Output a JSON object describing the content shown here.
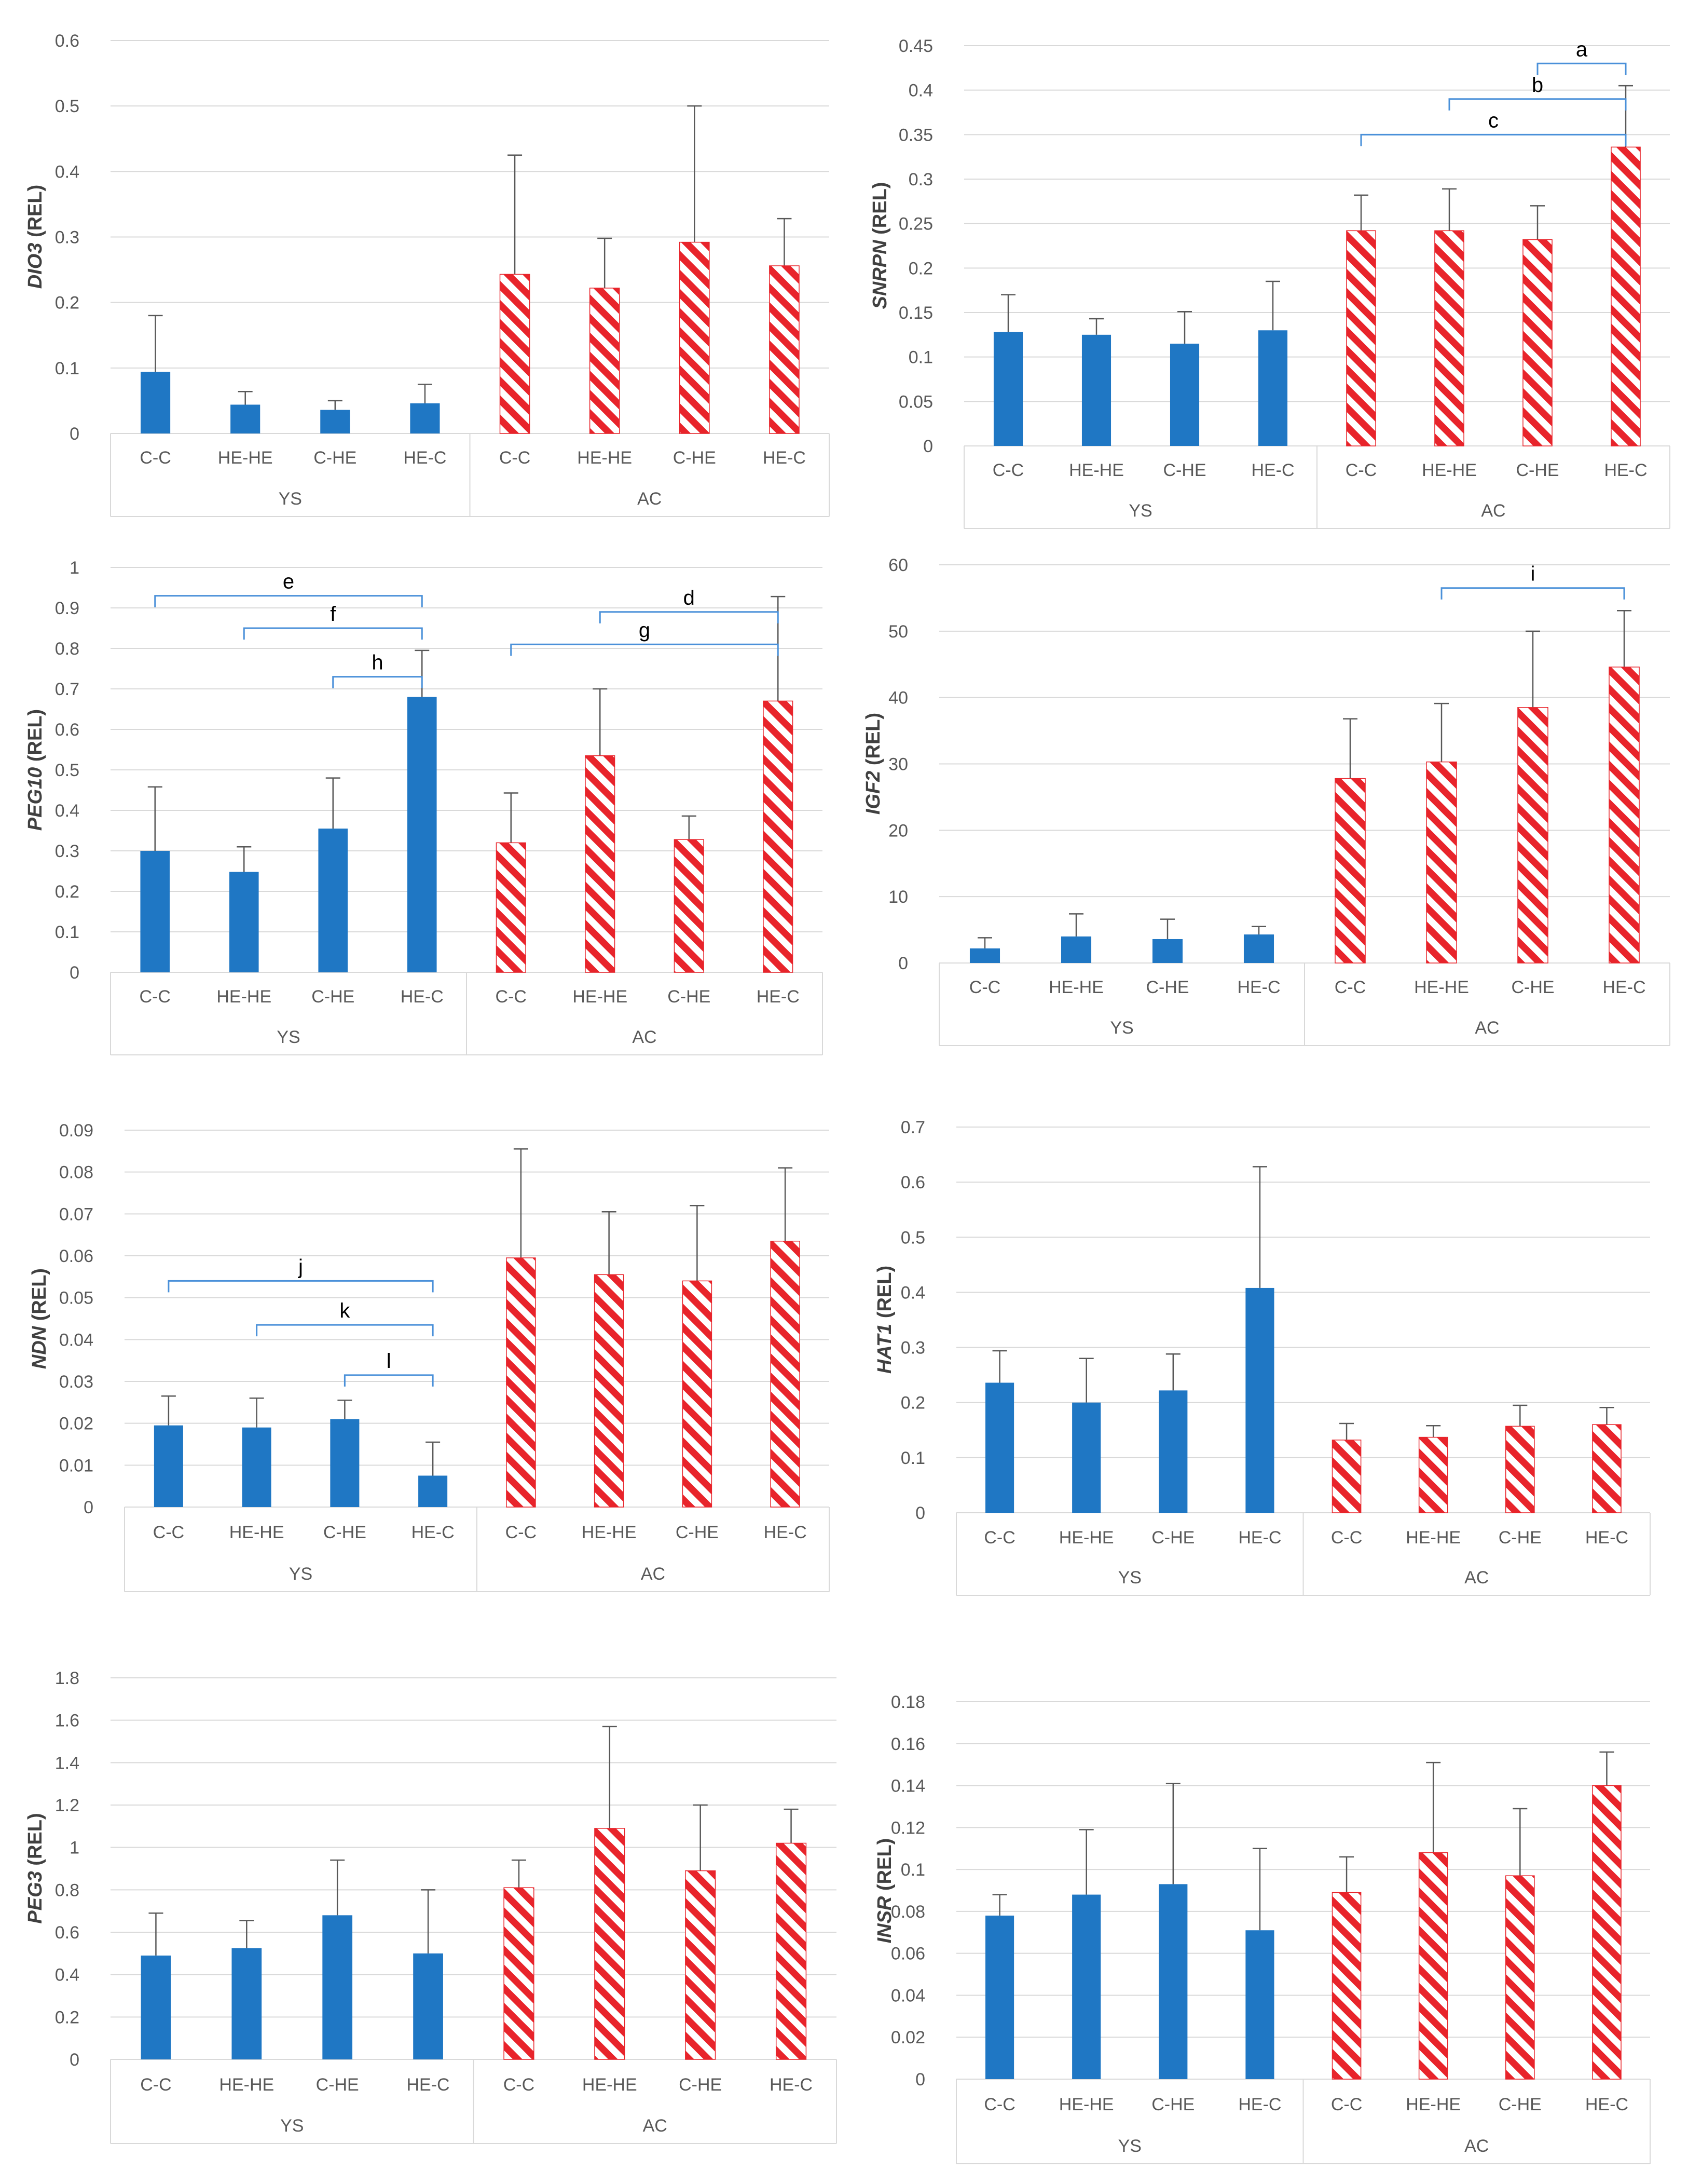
{
  "colors": {
    "ys": "#1f77c4",
    "ac": "#e8242b",
    "bracket": "#4a90d9"
  },
  "chart_data": [
    {
      "type": "bar",
      "gene": "DIO3",
      "ylabel_suffix": " (REL)",
      "ylim": [
        0,
        0.6
      ],
      "yticks": [
        "0",
        "0.1",
        "0.2",
        "0.3",
        "0.4",
        "0.5",
        "0.6"
      ],
      "groups": [
        {
          "name": "YS",
          "categories": [
            "C-C",
            "HE-HE",
            "C-HE",
            "HE-C"
          ],
          "values": [
            0.094,
            0.044,
            0.036,
            0.046
          ],
          "errors": [
            0.086,
            0.02,
            0.014,
            0.029
          ]
        },
        {
          "name": "AC",
          "categories": [
            "C-C",
            "HE-HE",
            "C-HE",
            "HE-C"
          ],
          "values": [
            0.243,
            0.222,
            0.292,
            0.256
          ],
          "errors": [
            0.182,
            0.076,
            0.208,
            0.072
          ]
        }
      ],
      "brackets": []
    },
    {
      "type": "bar",
      "gene": "SNRPN",
      "ylabel_suffix": " (REL)",
      "ylim": [
        0,
        0.45
      ],
      "yticks": [
        "0",
        "0.05",
        "0.1",
        "0.15",
        "0.2",
        "0.25",
        "0.3",
        "0.35",
        "0.4",
        "0.45"
      ],
      "groups": [
        {
          "name": "YS",
          "categories": [
            "C-C",
            "HE-HE",
            "C-HE",
            "HE-C"
          ],
          "values": [
            0.128,
            0.125,
            0.115,
            0.13
          ],
          "errors": [
            0.042,
            0.018,
            0.036,
            0.055
          ]
        },
        {
          "name": "AC",
          "categories": [
            "C-C",
            "HE-HE",
            "C-HE",
            "HE-C"
          ],
          "values": [
            0.242,
            0.242,
            0.232,
            0.336
          ],
          "errors": [
            0.04,
            0.047,
            0.038,
            0.069
          ]
        }
      ],
      "brackets": [
        {
          "label": "a",
          "from": 6,
          "to": 7,
          "y": 0.43
        },
        {
          "label": "b",
          "from": 5,
          "to": 7,
          "y": 0.39
        },
        {
          "label": "c",
          "from": 4,
          "to": 7,
          "y": 0.35
        }
      ]
    },
    {
      "type": "bar",
      "gene": "PEG10",
      "ylabel_suffix": " (REL)",
      "ylim": [
        0,
        1
      ],
      "yticks": [
        "0",
        "0.1",
        "0.2",
        "0.3",
        "0.4",
        "0.5",
        "0.6",
        "0.7",
        "0.8",
        "0.9",
        "1"
      ],
      "groups": [
        {
          "name": "YS",
          "categories": [
            "C-C",
            "HE-HE",
            "C-HE",
            "HE-C"
          ],
          "values": [
            0.3,
            0.248,
            0.355,
            0.68
          ],
          "errors": [
            0.158,
            0.062,
            0.125,
            0.115
          ]
        },
        {
          "name": "AC",
          "categories": [
            "C-C",
            "HE-HE",
            "C-HE",
            "HE-C"
          ],
          "values": [
            0.32,
            0.535,
            0.328,
            0.67
          ],
          "errors": [
            0.123,
            0.165,
            0.058,
            0.258
          ]
        }
      ],
      "brackets": [
        {
          "label": "e",
          "from": 0,
          "to": 3,
          "y": 0.93
        },
        {
          "label": "f",
          "from": 1,
          "to": 3,
          "y": 0.85
        },
        {
          "label": "h",
          "from": 2,
          "to": 3,
          "y": 0.73
        },
        {
          "label": "d",
          "from": 5,
          "to": 7,
          "y": 0.89
        },
        {
          "label": "g",
          "from": 4,
          "to": 7,
          "y": 0.81
        }
      ]
    },
    {
      "type": "bar",
      "gene": "IGF2",
      "ylabel_suffix": " (REL)",
      "ylim": [
        0,
        60
      ],
      "yticks": [
        "0",
        "10",
        "20",
        "30",
        "40",
        "50",
        "60"
      ],
      "groups": [
        {
          "name": "YS",
          "categories": [
            "C-C",
            "HE-HE",
            "C-HE",
            "HE-C"
          ],
          "values": [
            2.2,
            4.0,
            3.6,
            4.3
          ],
          "errors": [
            1.6,
            3.4,
            3.0,
            1.2
          ]
        },
        {
          "name": "AC",
          "categories": [
            "C-C",
            "HE-HE",
            "C-HE",
            "HE-C"
          ],
          "values": [
            27.8,
            30.3,
            38.5,
            44.6
          ],
          "errors": [
            9.0,
            8.8,
            11.5,
            8.5
          ]
        }
      ],
      "brackets": [
        {
          "label": "i",
          "from": 5,
          "to": 7,
          "y": 56.5
        }
      ]
    },
    {
      "type": "bar",
      "gene": "NDN",
      "ylabel_suffix": " (REL)",
      "ylim": [
        0,
        0.09
      ],
      "yticks": [
        "0",
        "0.01",
        "0.02",
        "0.03",
        "0.04",
        "0.05",
        "0.06",
        "0.07",
        "0.08",
        "0.09"
      ],
      "groups": [
        {
          "name": "YS",
          "categories": [
            "C-C",
            "HE-HE",
            "C-HE",
            "HE-C"
          ],
          "values": [
            0.0195,
            0.019,
            0.021,
            0.0075
          ],
          "errors": [
            0.007,
            0.007,
            0.0045,
            0.008
          ]
        },
        {
          "name": "AC",
          "categories": [
            "C-C",
            "HE-HE",
            "C-HE",
            "HE-C"
          ],
          "values": [
            0.0595,
            0.0555,
            0.054,
            0.0635
          ],
          "errors": [
            0.026,
            0.015,
            0.018,
            0.0175
          ]
        }
      ],
      "brackets": [
        {
          "label": "j",
          "from": 0,
          "to": 3,
          "y": 0.054
        },
        {
          "label": "k",
          "from": 1,
          "to": 3,
          "y": 0.0435
        },
        {
          "label": "l",
          "from": 2,
          "to": 3,
          "y": 0.0315
        }
      ]
    },
    {
      "type": "bar",
      "gene": "HAT1",
      "ylabel_suffix": " (REL)",
      "ylim": [
        0,
        0.7
      ],
      "yticks": [
        "0",
        "0.1",
        "0.2",
        "0.3",
        "0.4",
        "0.5",
        "0.6",
        "0.7"
      ],
      "groups": [
        {
          "name": "YS",
          "categories": [
            "C-C",
            "HE-HE",
            "C-HE",
            "HE-C"
          ],
          "values": [
            0.236,
            0.2,
            0.222,
            0.408
          ],
          "errors": [
            0.058,
            0.08,
            0.066,
            0.22
          ]
        },
        {
          "name": "AC",
          "categories": [
            "C-C",
            "HE-HE",
            "C-HE",
            "HE-C"
          ],
          "values": [
            0.132,
            0.137,
            0.157,
            0.16
          ],
          "errors": [
            0.03,
            0.021,
            0.038,
            0.031
          ]
        }
      ],
      "brackets": []
    },
    {
      "type": "bar",
      "gene": "PEG3",
      "ylabel_suffix": " (REL)",
      "ylim": [
        0,
        1.8
      ],
      "yticks": [
        "0",
        "0.2",
        "0.4",
        "0.6",
        "0.8",
        "1",
        "1.2",
        "1.4",
        "1.6",
        "1.8"
      ],
      "groups": [
        {
          "name": "YS",
          "categories": [
            "C-C",
            "HE-HE",
            "C-HE",
            "HE-C"
          ],
          "values": [
            0.49,
            0.525,
            0.68,
            0.5
          ],
          "errors": [
            0.2,
            0.13,
            0.26,
            0.3
          ]
        },
        {
          "name": "AC",
          "categories": [
            "C-C",
            "HE-HE",
            "C-HE",
            "HE-C"
          ],
          "values": [
            0.81,
            1.09,
            0.89,
            1.02
          ],
          "errors": [
            0.13,
            0.48,
            0.31,
            0.16
          ]
        }
      ],
      "brackets": []
    },
    {
      "type": "bar",
      "gene": "INSR",
      "ylabel_suffix": " (REL)",
      "ylim": [
        0,
        0.18
      ],
      "yticks": [
        "0",
        "0.02",
        "0.04",
        "0.06",
        "0.08",
        "0.1",
        "0.12",
        "0.14",
        "0.16",
        "0.18"
      ],
      "groups": [
        {
          "name": "YS",
          "categories": [
            "C-C",
            "HE-HE",
            "C-HE",
            "HE-C"
          ],
          "values": [
            0.078,
            0.088,
            0.093,
            0.071
          ],
          "errors": [
            0.01,
            0.031,
            0.048,
            0.039
          ]
        },
        {
          "name": "AC",
          "categories": [
            "C-C",
            "HE-HE",
            "C-HE",
            "HE-C"
          ],
          "values": [
            0.089,
            0.108,
            0.097,
            0.14
          ],
          "errors": [
            0.017,
            0.043,
            0.032,
            0.016
          ]
        }
      ],
      "brackets": []
    }
  ]
}
